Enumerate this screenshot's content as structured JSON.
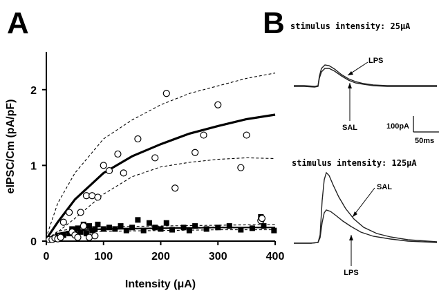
{
  "panel_a_letter": "A",
  "panel_b_letter": "B",
  "chart_data": {
    "type": "scatter",
    "xlabel": "Intensity (μA)",
    "ylabel": "eIPSC/Cm (pA/pF)",
    "xlim": [
      0,
      400
    ],
    "ylim": [
      0,
      2.5
    ],
    "xticks": [
      0,
      100,
      200,
      300,
      400
    ],
    "yticks": [
      0,
      1,
      2
    ],
    "grid": false,
    "series": [
      {
        "marker": "open-circle",
        "points": [
          [
            5,
            0.02
          ],
          [
            10,
            0.02
          ],
          [
            15,
            0.04
          ],
          [
            20,
            0.03
          ],
          [
            25,
            0.05
          ],
          [
            30,
            0.25
          ],
          [
            40,
            0.38
          ],
          [
            45,
            0.12
          ],
          [
            50,
            0.08
          ],
          [
            55,
            0.05
          ],
          [
            60,
            0.38
          ],
          [
            65,
            0.2
          ],
          [
            70,
            0.6
          ],
          [
            75,
            0.05
          ],
          [
            80,
            0.6
          ],
          [
            85,
            0.07
          ],
          [
            90,
            0.58
          ],
          [
            100,
            1.0
          ],
          [
            110,
            0.93
          ],
          [
            125,
            1.15
          ],
          [
            135,
            0.9
          ],
          [
            160,
            1.35
          ],
          [
            190,
            1.1
          ],
          [
            210,
            1.95
          ],
          [
            225,
            0.7
          ],
          [
            260,
            1.17
          ],
          [
            275,
            1.4
          ],
          [
            300,
            1.8
          ],
          [
            340,
            0.97
          ],
          [
            350,
            1.4
          ],
          [
            375,
            0.27
          ],
          [
            377,
            0.3
          ]
        ],
        "fit": [
          [
            2,
            0.05
          ],
          [
            20,
            0.25
          ],
          [
            50,
            0.55
          ],
          [
            100,
            0.9
          ],
          [
            150,
            1.12
          ],
          [
            200,
            1.28
          ],
          [
            250,
            1.42
          ],
          [
            300,
            1.52
          ],
          [
            350,
            1.61
          ],
          [
            400,
            1.67
          ]
        ],
        "ci_upper": [
          [
            2,
            0.1
          ],
          [
            20,
            0.5
          ],
          [
            50,
            0.9
          ],
          [
            100,
            1.35
          ],
          [
            150,
            1.6
          ],
          [
            200,
            1.8
          ],
          [
            250,
            1.95
          ],
          [
            300,
            2.05
          ],
          [
            350,
            2.15
          ],
          [
            400,
            2.22
          ]
        ],
        "ci_lower": [
          [
            2,
            0.01
          ],
          [
            20,
            0.12
          ],
          [
            50,
            0.3
          ],
          [
            100,
            0.62
          ],
          [
            150,
            0.85
          ],
          [
            200,
            0.98
          ],
          [
            250,
            1.04
          ],
          [
            300,
            1.08
          ],
          [
            350,
            1.1
          ],
          [
            400,
            1.09
          ]
        ]
      },
      {
        "marker": "filled-square",
        "points": [
          [
            10,
            0.02
          ],
          [
            20,
            0.05
          ],
          [
            30,
            0.08
          ],
          [
            40,
            0.1
          ],
          [
            45,
            0.16
          ],
          [
            50,
            0.15
          ],
          [
            55,
            0.17
          ],
          [
            60,
            0.12
          ],
          [
            65,
            0.22
          ],
          [
            70,
            0.1
          ],
          [
            75,
            0.2
          ],
          [
            80,
            0.14
          ],
          [
            85,
            0.16
          ],
          [
            90,
            0.22
          ],
          [
            100,
            0.16
          ],
          [
            110,
            0.18
          ],
          [
            120,
            0.16
          ],
          [
            130,
            0.2
          ],
          [
            140,
            0.14
          ],
          [
            150,
            0.18
          ],
          [
            160,
            0.28
          ],
          [
            170,
            0.14
          ],
          [
            180,
            0.24
          ],
          [
            190,
            0.18
          ],
          [
            200,
            0.16
          ],
          [
            210,
            0.24
          ],
          [
            220,
            0.15
          ],
          [
            240,
            0.18
          ],
          [
            250,
            0.14
          ],
          [
            260,
            0.2
          ],
          [
            280,
            0.16
          ],
          [
            300,
            0.18
          ],
          [
            320,
            0.2
          ],
          [
            340,
            0.15
          ],
          [
            360,
            0.17
          ],
          [
            375,
            0.32
          ],
          [
            380,
            0.2
          ],
          [
            398,
            0.14
          ]
        ],
        "fit": [
          [
            2,
            0.02
          ],
          [
            20,
            0.1
          ],
          [
            50,
            0.14
          ],
          [
            100,
            0.16
          ],
          [
            200,
            0.17
          ],
          [
            300,
            0.18
          ],
          [
            400,
            0.18
          ]
        ],
        "ci_upper": [
          [
            2,
            0.03
          ],
          [
            20,
            0.13
          ],
          [
            50,
            0.17
          ],
          [
            100,
            0.19
          ],
          [
            200,
            0.2
          ],
          [
            300,
            0.21
          ],
          [
            400,
            0.22
          ]
        ],
        "ci_lower": [
          [
            2,
            0.01
          ],
          [
            20,
            0.07
          ],
          [
            50,
            0.11
          ],
          [
            100,
            0.13
          ],
          [
            200,
            0.14
          ],
          [
            300,
            0.15
          ],
          [
            400,
            0.15
          ]
        ]
      }
    ]
  },
  "panel_b": {
    "top_title": "stimulus intensity: 25μA",
    "bottom_title": "stimulus intensity: 125μA",
    "top_labels": {
      "arrow1": "LPS",
      "arrow2": "SAL"
    },
    "bottom_labels": {
      "arrow1": "SAL",
      "arrow2": "LPS"
    },
    "scalebar_amplitude": "100pA",
    "scalebar_time": "50ms"
  }
}
